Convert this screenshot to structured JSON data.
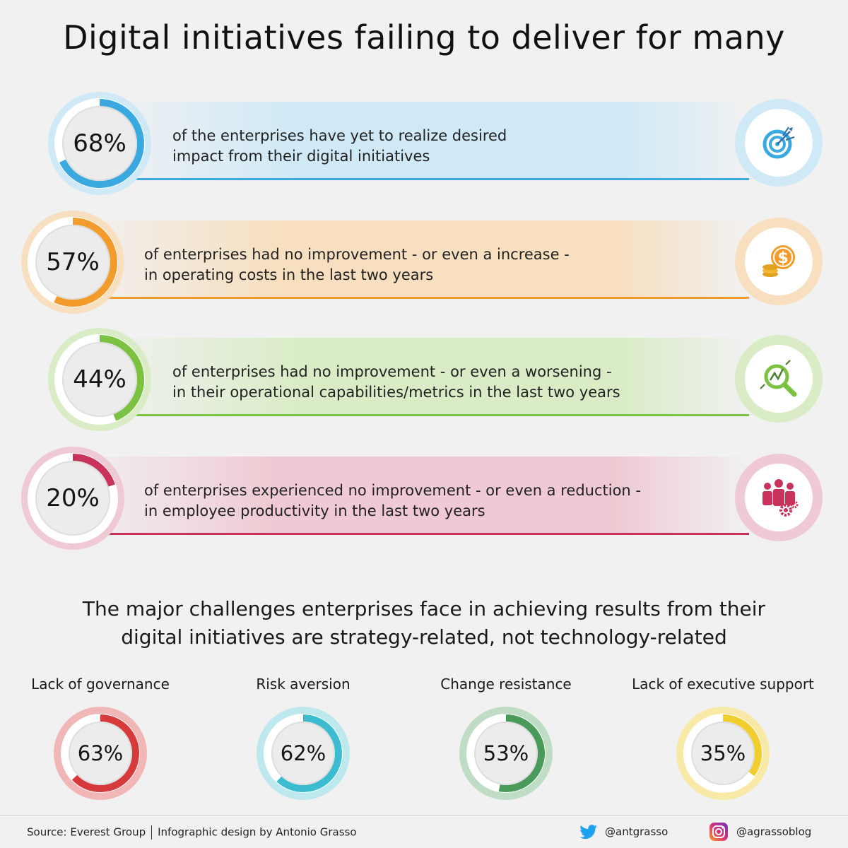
{
  "title": "Digital initiatives failing to deliver for many",
  "stats": [
    {
      "value": "68%",
      "fraction": 0.68,
      "line1": "of the enterprises have yet to realize desired",
      "line2": "impact from their digital initiatives",
      "color": "#39a9e0",
      "light": "#cfe9f7",
      "icon": "target-icon"
    },
    {
      "value": "57%",
      "fraction": 0.57,
      "line1": "of enterprises had no improvement - or even a increase -",
      "line2": "in operating costs in the last two years",
      "color": "#f39c2b",
      "light": "#f7dfbf",
      "icon": "dollar-coins-icon"
    },
    {
      "value": "44%",
      "fraction": 0.44,
      "line1": "of enterprises had no improvement - or even a worsening -",
      "line2": "in their operational capabilities/metrics in the last two years",
      "color": "#7cc242",
      "light": "#d9ecc6",
      "icon": "magnifier-chart-icon"
    },
    {
      "value": "20%",
      "fraction": 0.2,
      "line1": "of enterprises experienced no improvement - or even a reduction -",
      "line2": "in employee productivity in the last two years",
      "color": "#c9335b",
      "light": "#efc9d3",
      "icon": "team-gears-icon"
    }
  ],
  "subtitle_line1": "The major challenges enterprises face in achieving results from their",
  "subtitle_line2": "digital initiatives are strategy-related, not technology-related",
  "chart_data": {
    "type": "table",
    "title": "The major challenges enterprises face in achieving results from their digital initiatives are strategy-related, not technology-related",
    "categories": [
      "Lack of governance",
      "Risk aversion",
      "Change resistance",
      "Lack of executive support"
    ],
    "values": [
      63,
      62,
      53,
      35
    ],
    "labels": [
      "63%",
      "62%",
      "53%",
      "35%"
    ],
    "colors": [
      "#d63a3a",
      "#3cbcd0",
      "#4a9a5a",
      "#f2cd2e"
    ],
    "glow": [
      "#f1b7b7",
      "#bde8ee",
      "#bfdcc4",
      "#f8e9a6"
    ]
  },
  "footer": {
    "source": "Source: Everest Group",
    "design": "Infographic design by Antonio Grasso",
    "twitter": "@antgrasso",
    "instagram": "@agrassoblog"
  }
}
